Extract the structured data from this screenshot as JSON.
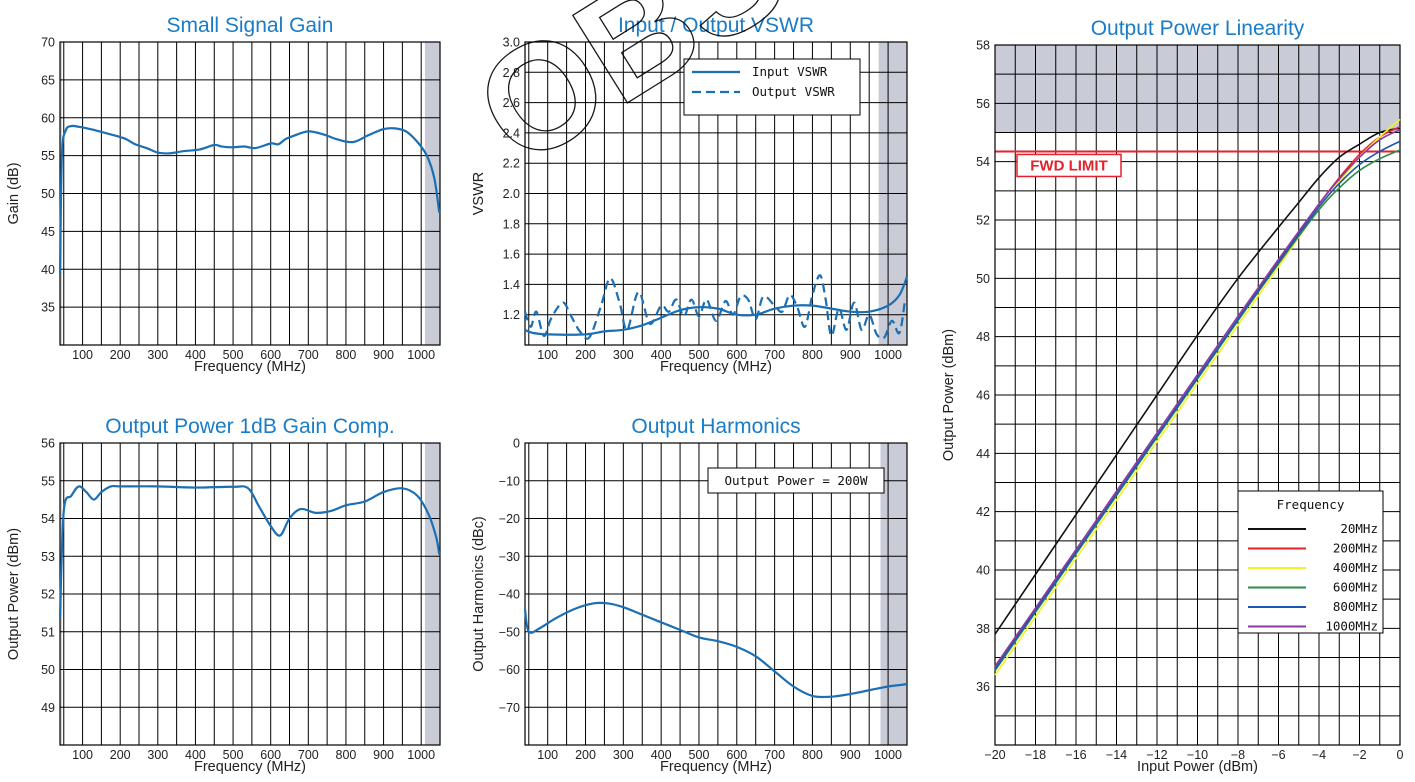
{
  "watermark": "OBSO",
  "chart_data": [
    {
      "id": "gain",
      "type": "line",
      "title": "Small Signal Gain",
      "xlabel": "Frequency (MHz)",
      "ylabel": "Gain (dB)",
      "xlim": [
        40,
        1050
      ],
      "ylim": [
        30,
        70
      ],
      "xticks": [
        100,
        200,
        300,
        400,
        500,
        600,
        700,
        800,
        900,
        1000
      ],
      "yticks": [
        35,
        40,
        45,
        50,
        55,
        60,
        65,
        70
      ],
      "grid": true,
      "shaded_x_ranges": [
        [
          40,
          45
        ],
        [
          1010,
          1050
        ]
      ],
      "series": [
        {
          "color": "#1a6fb5",
          "dash": "solid",
          "x": [
            40,
            45,
            55,
            70,
            90,
            120,
            160,
            210,
            240,
            270,
            300,
            330,
            370,
            410,
            450,
            470,
            500,
            530,
            560,
            600,
            620,
            640,
            660,
            700,
            740,
            780,
            820,
            860,
            900,
            930,
            960,
            990,
            1015,
            1035,
            1048
          ],
          "y": [
            39.5,
            55,
            58.3,
            58.9,
            58.8,
            58.5,
            58.0,
            57.3,
            56.5,
            56.0,
            55.4,
            55.3,
            55.6,
            55.8,
            56.4,
            56.2,
            56.1,
            56.2,
            56.0,
            56.6,
            56.5,
            57.2,
            57.6,
            58.2,
            57.8,
            57.1,
            56.8,
            57.7,
            58.5,
            58.6,
            58.2,
            56.8,
            55.0,
            52.0,
            47.5
          ]
        }
      ]
    },
    {
      "id": "vswr",
      "type": "line",
      "title": "Input / Output VSWR",
      "xlabel": "Frequency (MHz)",
      "ylabel": "VSWR",
      "xlim": [
        40,
        1050
      ],
      "ylim": [
        1.0,
        3.0
      ],
      "xticks": [
        100,
        200,
        300,
        400,
        500,
        600,
        700,
        800,
        900,
        1000
      ],
      "yticks": [
        1.2,
        1.4,
        1.6,
        1.8,
        2.0,
        2.2,
        2.4,
        2.6,
        2.8,
        3.0
      ],
      "ytick_labels": [
        "1.2",
        "1.4",
        "1.6",
        "1.8",
        "2.0",
        "2.2",
        "2.4",
        "2.6",
        "2.8",
        "3.0"
      ],
      "grid": true,
      "legend_position": "top-right",
      "shaded_x_ranges": [
        [
          975,
          1050
        ]
      ],
      "series": [
        {
          "name": "Input VSWR",
          "color": "#1a6fb5",
          "dash": "solid",
          "x": [
            40,
            60,
            100,
            200,
            250,
            300,
            350,
            400,
            450,
            500,
            550,
            600,
            650,
            700,
            750,
            800,
            850,
            900,
            950,
            1000,
            1030,
            1050
          ],
          "y": [
            1.1,
            1.08,
            1.07,
            1.07,
            1.09,
            1.1,
            1.13,
            1.18,
            1.23,
            1.25,
            1.24,
            1.2,
            1.2,
            1.24,
            1.26,
            1.26,
            1.24,
            1.22,
            1.22,
            1.26,
            1.33,
            1.45
          ]
        },
        {
          "name": "Output VSWR",
          "color": "#1a6fb5",
          "dash": "dashed",
          "x": [
            40,
            55,
            70,
            90,
            110,
            140,
            160,
            185,
            210,
            240,
            265,
            290,
            310,
            340,
            370,
            400,
            420,
            440,
            460,
            480,
            500,
            520,
            545,
            570,
            590,
            610,
            630,
            650,
            670,
            700,
            720,
            740,
            760,
            780,
            800,
            820,
            835,
            850,
            870,
            890,
            910,
            930,
            950,
            970,
            990,
            1010,
            1030,
            1045
          ],
          "y": [
            1.22,
            1.12,
            1.22,
            1.06,
            1.18,
            1.28,
            1.2,
            1.09,
            1.05,
            1.25,
            1.44,
            1.28,
            1.1,
            1.35,
            1.14,
            1.26,
            1.22,
            1.3,
            1.19,
            1.3,
            1.19,
            1.3,
            1.16,
            1.29,
            1.2,
            1.32,
            1.3,
            1.17,
            1.32,
            1.26,
            1.22,
            1.33,
            1.25,
            1.12,
            1.33,
            1.46,
            1.3,
            1.06,
            1.24,
            1.1,
            1.28,
            1.1,
            1.2,
            1.07,
            1.05,
            1.16,
            1.08,
            1.3
          ]
        }
      ]
    },
    {
      "id": "p1db",
      "type": "line",
      "title": "Output Power 1dB Gain Comp.",
      "xlabel": "Frequency (MHz)",
      "ylabel": "Output Power (dBm)",
      "xlim": [
        40,
        1050
      ],
      "ylim": [
        48,
        56
      ],
      "xticks": [
        100,
        200,
        300,
        400,
        500,
        600,
        700,
        800,
        900,
        1000
      ],
      "yticks": [
        49,
        50,
        51,
        52,
        53,
        54,
        55,
        56
      ],
      "grid": true,
      "shaded_x_ranges": [
        [
          40,
          45
        ],
        [
          1010,
          1050
        ]
      ],
      "series": [
        {
          "color": "#1a6fb5",
          "dash": "solid",
          "x": [
            40,
            50,
            70,
            90,
            110,
            130,
            150,
            175,
            200,
            300,
            400,
            500,
            540,
            570,
            600,
            625,
            650,
            680,
            720,
            760,
            800,
            850,
            900,
            950,
            990,
            1020,
            1040,
            1048
          ],
          "y": [
            51.4,
            54.2,
            54.6,
            54.85,
            54.7,
            54.5,
            54.7,
            54.85,
            54.85,
            54.85,
            54.82,
            54.84,
            54.8,
            54.3,
            53.8,
            53.55,
            54.0,
            54.25,
            54.15,
            54.2,
            54.35,
            54.45,
            54.7,
            54.8,
            54.6,
            54.1,
            53.5,
            53.05
          ]
        }
      ]
    },
    {
      "id": "harmonics",
      "type": "line",
      "title": "Output Harmonics",
      "xlabel": "Frequency (MHz)",
      "ylabel": "Output Harmonics (dBc)",
      "xlim": [
        40,
        1050
      ],
      "ylim": [
        -80,
        0
      ],
      "xticks": [
        100,
        200,
        300,
        400,
        500,
        600,
        700,
        800,
        900,
        1000
      ],
      "yticks": [
        0,
        -10,
        -20,
        -30,
        -40,
        -50,
        -60,
        -70
      ],
      "ytick_labels": [
        "0",
        "−10",
        "−20",
        "−30",
        "−40",
        "−50",
        "−60",
        "−70"
      ],
      "grid": true,
      "annotation": "Output Power = 200W",
      "shaded_x_ranges": [
        [
          980,
          1050
        ]
      ],
      "series": [
        {
          "color": "#1a6fb5",
          "dash": "solid",
          "x": [
            40,
            50,
            80,
            120,
            170,
            220,
            260,
            300,
            350,
            400,
            450,
            500,
            550,
            600,
            650,
            700,
            750,
            800,
            850,
            900,
            950,
            1000,
            1040,
            1050
          ],
          "y": [
            -44,
            -50,
            -49,
            -46.5,
            -44,
            -42.5,
            -42.5,
            -43.5,
            -45.5,
            -47.5,
            -49.5,
            -51.5,
            -52.5,
            -54,
            -56.5,
            -60.5,
            -64.5,
            -67,
            -67.2,
            -66.5,
            -65.5,
            -64.5,
            -64,
            -63.8
          ]
        }
      ]
    },
    {
      "id": "linearity",
      "type": "line",
      "title": "Output Power Linearity",
      "xlabel": "Input Power (dBm)",
      "ylabel": "Output Power (dBm)",
      "xlim": [
        -20,
        0
      ],
      "ylim": [
        34,
        58
      ],
      "xticks": [
        -20,
        -18,
        -16,
        -14,
        -12,
        -10,
        -8,
        -6,
        -4,
        -2,
        0
      ],
      "xtick_labels": [
        "−20",
        "−18",
        "−16",
        "−14",
        "−12",
        "−10",
        "−8",
        "−6",
        "−4",
        "−2",
        "0"
      ],
      "yticks": [
        36,
        38,
        40,
        42,
        44,
        46,
        48,
        50,
        52,
        54,
        56,
        58
      ],
      "grid": true,
      "shaded_y_range": [
        55,
        58
      ],
      "limit_line": {
        "y": 54.35,
        "label": "FWD LIMIT",
        "color": "#e3232b"
      },
      "legend_title": "Frequency",
      "legend_position": "bottom-right",
      "series": [
        {
          "name": "20MHz",
          "color": "#111111",
          "x": [
            -20,
            -18,
            -16,
            -14,
            -12,
            -10,
            -8,
            -6,
            -5,
            -4,
            -3,
            -2,
            -1,
            0
          ],
          "y": [
            37.8,
            39.85,
            41.9,
            43.95,
            46.0,
            48.05,
            50.0,
            51.75,
            52.6,
            53.45,
            54.15,
            54.6,
            55.0,
            55.15
          ]
        },
        {
          "name": "200MHz",
          "color": "#e3232b",
          "x": [
            -20,
            -18,
            -16,
            -14,
            -12,
            -10,
            -8,
            -6,
            -4,
            -3,
            -2,
            -1,
            0
          ],
          "y": [
            36.65,
            38.65,
            40.6,
            42.6,
            44.6,
            46.6,
            48.6,
            50.6,
            52.55,
            53.45,
            54.25,
            54.85,
            55.2
          ]
        },
        {
          "name": "400MHz",
          "color": "#f3f320",
          "x": [
            -20,
            -18,
            -16,
            -14,
            -12,
            -10,
            -8,
            -6,
            -4,
            -3,
            -2,
            -1,
            0
          ],
          "y": [
            36.4,
            38.4,
            40.4,
            42.4,
            44.4,
            46.4,
            48.4,
            50.4,
            52.4,
            53.3,
            54.15,
            54.85,
            55.45
          ]
        },
        {
          "name": "600MHz",
          "color": "#2e8b4e",
          "x": [
            -20,
            -18,
            -16,
            -14,
            -12,
            -10,
            -8,
            -6,
            -4,
            -3,
            -2,
            -1,
            0
          ],
          "y": [
            36.55,
            38.55,
            40.55,
            42.55,
            44.55,
            46.55,
            48.55,
            50.5,
            52.35,
            53.1,
            53.7,
            54.1,
            54.4
          ]
        },
        {
          "name": "800MHz",
          "color": "#1e56b3",
          "x": [
            -20,
            -18,
            -16,
            -14,
            -12,
            -10,
            -8,
            -6,
            -4,
            -3,
            -2,
            -1,
            0
          ],
          "y": [
            36.6,
            38.6,
            40.6,
            42.6,
            44.6,
            46.6,
            48.6,
            50.55,
            52.45,
            53.25,
            53.9,
            54.35,
            54.7
          ]
        },
        {
          "name": "1000MHz",
          "color": "#8b3aa6",
          "x": [
            -20,
            -18,
            -16,
            -14,
            -12,
            -10,
            -8,
            -6,
            -4,
            -3,
            -2,
            -1,
            0
          ],
          "y": [
            36.7,
            38.7,
            40.7,
            42.7,
            44.7,
            46.7,
            48.7,
            50.65,
            52.55,
            53.4,
            54.15,
            54.75,
            55.1
          ]
        }
      ]
    }
  ]
}
